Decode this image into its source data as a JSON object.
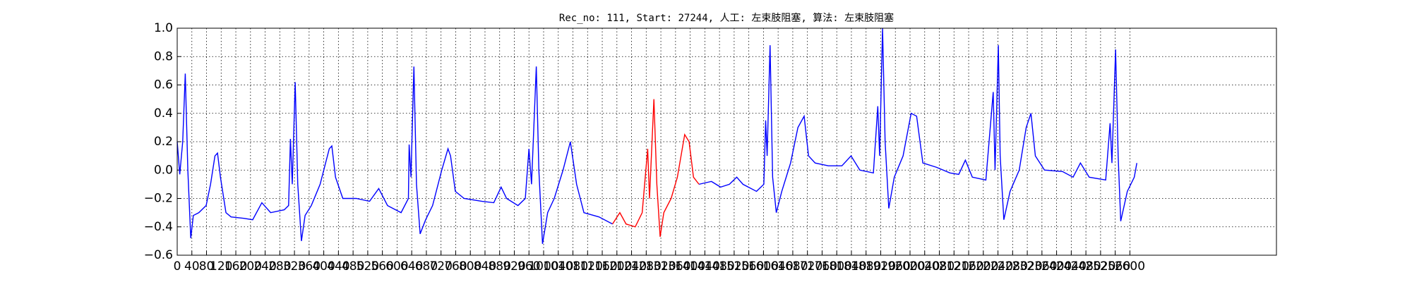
{
  "chart_data": {
    "type": "line",
    "title": "Rec_no: 111, Start: 27244, 人工: 左束肢阻塞, 算法: 左束肢阻塞",
    "x": [
      0,
      7,
      15,
      22,
      29,
      37,
      44,
      59,
      79,
      91,
      103,
      110,
      118,
      133,
      147,
      182,
      206,
      231,
      255,
      292,
      304,
      309,
      314,
      322,
      329,
      339,
      349,
      366,
      390,
      415,
      422,
      432,
      452,
      489,
      525,
      550,
      574,
      611,
      631,
      633,
      638,
      646,
      653,
      663,
      678,
      697,
      722,
      739,
      746,
      759,
      783,
      832,
      864,
      884,
      899,
      930,
      950,
      960,
      967,
      980,
      987,
      997,
      1011,
      1029,
      1053,
      1073,
      1090,
      1110,
      1151,
      1188,
      1208,
      1225,
      1250,
      1269,
      1284,
      1289,
      1301,
      1309,
      1318,
      1328,
      1348,
      1365,
      1385,
      1397,
      1409,
      1424,
      1458,
      1483,
      1507,
      1527,
      1544,
      1581,
      1601,
      1606,
      1610,
      1618,
      1625,
      1635,
      1650,
      1674,
      1694,
      1711,
      1723,
      1741,
      1777,
      1814,
      1839,
      1863,
      1900,
      1912,
      1917,
      1925,
      1932,
      1942,
      1957,
      1981,
      2003,
      2018,
      2035,
      2072,
      2109,
      2133,
      2151,
      2170,
      2207,
      2227,
      2232,
      2241,
      2246,
      2256,
      2273,
      2298,
      2317,
      2330,
      2342,
      2367,
      2416,
      2445,
      2465,
      2489,
      2534,
      2546,
      2551,
      2561,
      2568,
      2575,
      2593,
      2612,
      2619
    ],
    "series": [
      {
        "color": "#0000ff",
        "values": [
          0.2,
          -0.03,
          0.2,
          0.68,
          0.0,
          -0.48,
          -0.32,
          -0.3,
          -0.25,
          -0.1,
          0.1,
          0.12,
          -0.05,
          -0.3,
          -0.33,
          -0.34,
          -0.35,
          -0.23,
          -0.3,
          -0.28,
          -0.25,
          0.22,
          -0.1,
          0.62,
          -0.1,
          -0.5,
          -0.32,
          -0.25,
          -0.1,
          0.15,
          0.17,
          -0.05,
          -0.2,
          -0.2,
          -0.22,
          -0.13,
          -0.25,
          -0.3,
          -0.2,
          0.18,
          -0.05,
          0.73,
          -0.1,
          -0.45,
          -0.35,
          -0.25,
          0.0,
          0.15,
          0.1,
          -0.15,
          -0.2,
          -0.22,
          -0.23,
          -0.12,
          -0.2,
          -0.25,
          -0.2,
          0.15,
          -0.1,
          0.73,
          0.0,
          -0.52,
          -0.3,
          -0.2,
          0.0,
          0.2,
          -0.1,
          -0.3,
          -0.33,
          -0.38,
          null,
          null,
          null,
          null,
          null,
          null,
          null,
          null,
          null,
          null,
          null,
          null,
          null,
          null,
          null,
          -0.1,
          -0.08,
          -0.12,
          -0.1,
          -0.05,
          -0.1,
          -0.15,
          -0.1,
          0.35,
          0.1,
          0.88,
          -0.05,
          -0.3,
          -0.15,
          0.05,
          0.3,
          0.38,
          0.1,
          0.05,
          0.03,
          0.03,
          0.1,
          0.0,
          -0.02,
          0.45,
          0.1,
          1.0,
          0.2,
          -0.27,
          -0.05,
          0.1,
          0.4,
          0.38,
          0.05,
          0.02,
          -0.02,
          -0.03,
          0.07,
          -0.05,
          -0.07,
          0.55,
          0.0,
          0.88,
          0.1,
          -0.35,
          -0.15,
          0.0,
          0.3,
          0.4,
          0.1,
          0.0,
          -0.01,
          -0.05,
          0.05,
          -0.05,
          -0.07,
          0.33,
          0.05,
          0.85,
          0.1,
          -0.36,
          -0.15,
          -0.05,
          0.05
        ]
      },
      {
        "color": "#ff0000",
        "values": [
          null,
          null,
          null,
          null,
          null,
          null,
          null,
          null,
          null,
          null,
          null,
          null,
          null,
          null,
          null,
          null,
          null,
          null,
          null,
          null,
          null,
          null,
          null,
          null,
          null,
          null,
          null,
          null,
          null,
          null,
          null,
          null,
          null,
          null,
          null,
          null,
          null,
          null,
          null,
          null,
          null,
          null,
          null,
          null,
          null,
          null,
          null,
          null,
          null,
          null,
          null,
          null,
          null,
          null,
          null,
          null,
          null,
          null,
          null,
          null,
          null,
          null,
          null,
          null,
          null,
          null,
          null,
          null,
          null,
          -0.38,
          -0.3,
          -0.38,
          -0.4,
          -0.3,
          0.15,
          -0.2,
          0.5,
          -0.1,
          -0.47,
          -0.3,
          -0.2,
          -0.05,
          0.25,
          0.2,
          -0.05,
          -0.1,
          null,
          null,
          null,
          null,
          null,
          null,
          null,
          null,
          null,
          null,
          null,
          null,
          null,
          null,
          null,
          null,
          null,
          null,
          null,
          null,
          null,
          null,
          null,
          null,
          null,
          null,
          null,
          null,
          null,
          null,
          null,
          null,
          null,
          null,
          null,
          null,
          null,
          null,
          null,
          null,
          null,
          null,
          null,
          null,
          null,
          null,
          null,
          null,
          null,
          null,
          null,
          null,
          null,
          null,
          null,
          null,
          null,
          null,
          null,
          null,
          null,
          null,
          null
        ]
      }
    ],
    "xlim": [
      0,
      3000
    ],
    "xticks": [
      0,
      40,
      80,
      120,
      160,
      200,
      240,
      280,
      320,
      360,
      400,
      440,
      480,
      520,
      560,
      600,
      640,
      680,
      720,
      760,
      800,
      840,
      880,
      920,
      960,
      1000,
      1040,
      1080,
      1120,
      1160,
      1200,
      1240,
      1280,
      1320,
      1360,
      1400,
      1440,
      1480,
      1520,
      1560,
      1600,
      1640,
      1680,
      1720,
      1760,
      1800,
      1840,
      1880,
      1920,
      1960,
      2000,
      2040,
      2080,
      2120,
      2160,
      2200,
      2240,
      2280,
      2320,
      2360,
      2400,
      2440,
      2480,
      2520,
      2560,
      2600
    ],
    "ylim": [
      -0.6,
      1.0
    ],
    "yticks": [
      {
        "value": -0.6,
        "label": "−0.6"
      },
      {
        "value": -0.4,
        "label": "−0.4"
      },
      {
        "value": -0.2,
        "label": "−0.2"
      },
      {
        "value": 0.0,
        "label": "0.0"
      },
      0.2,
      0.4,
      0.6,
      0.8,
      {
        "value": 1.0,
        "label": "1.0"
      }
    ],
    "grid": true
  }
}
